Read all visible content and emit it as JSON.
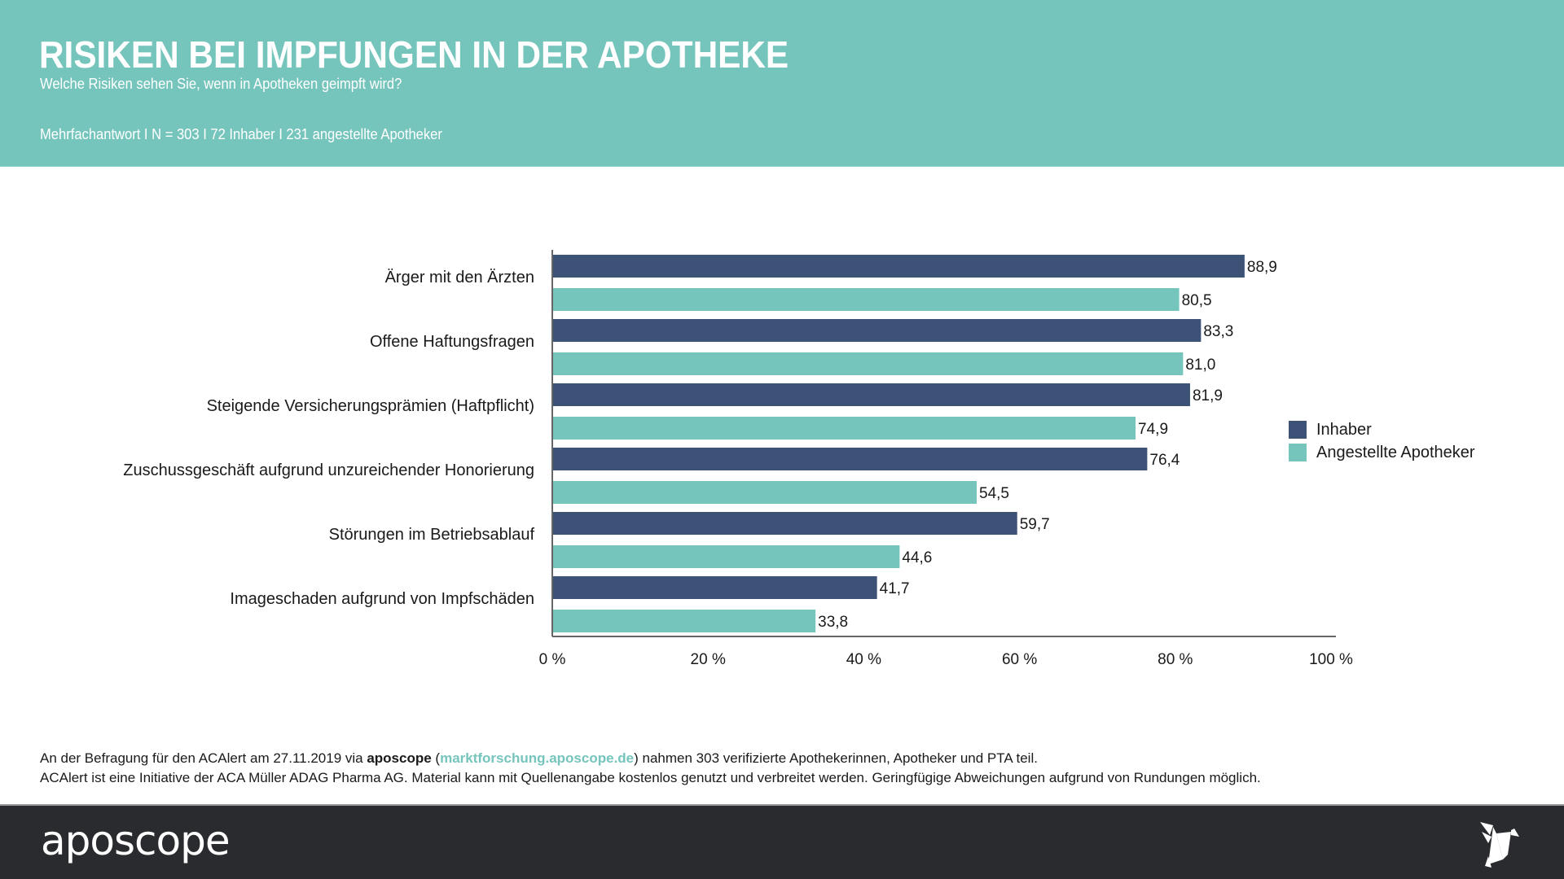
{
  "header": {
    "title": "RISIKEN BEI IMPFUNGEN IN DER APOTHEKE",
    "subtitle": "Welche Risiken sehen Sie, wenn in Apotheken geimpft wird?",
    "meta": "Mehrfachantwort I N = 303 I 72 Inhaber I 231 angestellte Apotheker"
  },
  "colors": {
    "header_bg": "#76c5bc",
    "inhaber": "#3c5277",
    "angestellte": "#76c5bc",
    "footer_bg": "#2a2b2f",
    "link": "#76c5bc"
  },
  "chart_data": {
    "type": "bar",
    "orientation": "horizontal",
    "title": "RISIKEN BEI IMPFUNGEN IN DER APOTHEKE",
    "subtitle": "Welche Risiken sehen Sie, wenn in Apotheken geimpft wird?",
    "xlabel": "",
    "ylabel": "",
    "categories": [
      "Ärger mit den Ärzten",
      "Offene Haftungsfragen",
      "Steigende Versicherungsprämien (Haftpflicht)",
      "Zuschussgeschäft aufgrund unzureichender Honorierung",
      "Störungen im Betriebsablauf",
      "Imageschaden aufgrund von Impfschäden"
    ],
    "series": [
      {
        "name": "Inhaber",
        "color": "#3c5277",
        "values": [
          88.9,
          83.3,
          81.9,
          76.4,
          59.7,
          41.7
        ],
        "labels": [
          "88,9",
          "83,3",
          "81,9",
          "76,4",
          "59,7",
          "41,7"
        ]
      },
      {
        "name": "Angestellte Apotheker",
        "color": "#76c5bc",
        "values": [
          80.5,
          81.0,
          74.9,
          54.5,
          44.6,
          33.8
        ],
        "labels": [
          "80,5",
          "81,0",
          "74,9",
          "54,5",
          "44,6",
          "33,8"
        ]
      }
    ],
    "xlim": [
      0,
      100
    ],
    "xticks": [
      0,
      20,
      40,
      60,
      80,
      100
    ],
    "xtick_labels": [
      "0 %",
      "20 %",
      "40 %",
      "60 %",
      "80 %",
      "100 %"
    ],
    "grid": false,
    "legend": {
      "position": "right",
      "entries": [
        "Inhaber",
        "Angestellte Apotheker"
      ]
    }
  },
  "footnote": {
    "line1_pre": "An der Befragung für den ACAlert am 27.11.2019 via ",
    "line1_brand": "aposcope",
    "line1_open": " (",
    "line1_link": "marktforschung.aposcope.de",
    "line1_post": ") nahmen 303 verifizierte Apothekerinnen, Apotheker und PTA teil.",
    "line2": "ACAlert ist eine Initiative der ACA Müller ADAG Pharma AG. Material kann mit Quellenangabe kostenlos genutzt und verbreitet werden. Geringfügige Abweichungen aufgrund von Rundungen möglich."
  },
  "footer": {
    "logo_text": "aposcope",
    "bird_icon": "origami-bird-icon"
  }
}
